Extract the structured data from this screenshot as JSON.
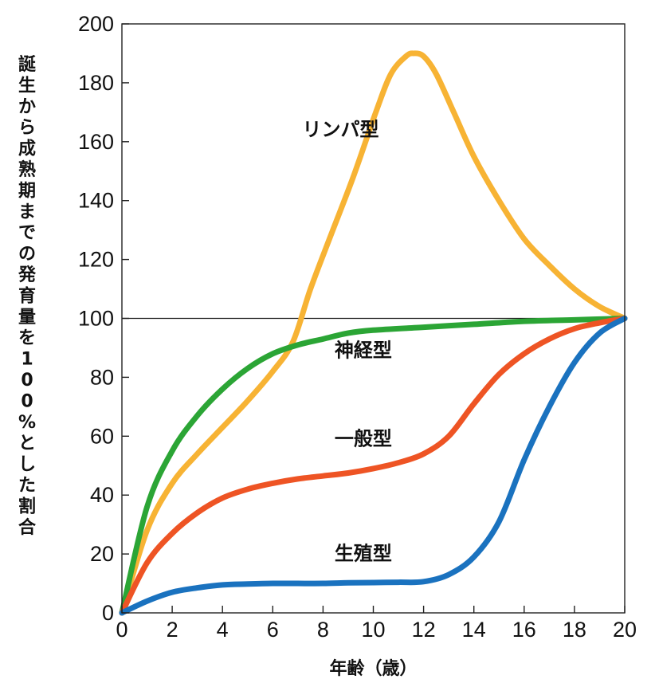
{
  "chart_data": {
    "type": "line",
    "title": "",
    "xlabel": "年齢（歳）",
    "ylabel": "誕生から成熟期までの発育量を100%とした割合",
    "xlim": [
      0,
      20
    ],
    "ylim": [
      0,
      200
    ],
    "x_ticks": [
      0,
      2,
      4,
      6,
      8,
      10,
      12,
      14,
      16,
      18,
      20
    ],
    "y_ticks": [
      0,
      20,
      40,
      60,
      80,
      100,
      120,
      140,
      160,
      180,
      200
    ],
    "reference_line_y": 100,
    "series": [
      {
        "name": "リンパ型",
        "color": "#F7B334",
        "x": [
          0,
          1,
          2,
          3,
          4,
          5,
          6,
          6.8,
          7.5,
          8.3,
          9.2,
          10.1,
          10.7,
          11.3,
          11.6,
          12,
          12.5,
          13.2,
          14,
          15,
          16,
          17,
          18,
          19,
          20
        ],
        "y": [
          0,
          28,
          44,
          54,
          63,
          72,
          82,
          92,
          110,
          128,
          148,
          170,
          183,
          189,
          190,
          189,
          183,
          170,
          155,
          140,
          127,
          118,
          110,
          104,
          100
        ]
      },
      {
        "name": "神経型",
        "color": "#2BA535",
        "x": [
          0,
          1,
          2,
          3,
          4,
          5,
          6,
          7,
          8,
          9,
          10,
          12,
          14,
          16,
          18,
          20
        ],
        "y": [
          0,
          36,
          55,
          67,
          76,
          83,
          88,
          91,
          93,
          95,
          96,
          97,
          98,
          99,
          99.5,
          100
        ]
      },
      {
        "name": "一般型",
        "color": "#EE5424",
        "x": [
          0,
          1,
          2,
          3,
          4,
          5,
          6,
          7,
          8,
          9,
          10,
          11,
          12,
          13,
          14,
          15,
          16,
          17,
          18,
          19,
          20
        ],
        "y": [
          0,
          17,
          27,
          34,
          39,
          42,
          44,
          45.5,
          46.5,
          47.5,
          49,
          51,
          54,
          60,
          71,
          81,
          88,
          93,
          96.5,
          98.5,
          100
        ]
      },
      {
        "name": "生殖型",
        "color": "#1A72BF",
        "x": [
          0,
          1,
          2,
          3,
          4,
          5,
          6,
          7,
          8,
          9,
          10,
          11,
          12,
          13,
          14,
          15,
          16,
          17,
          18,
          19,
          20
        ],
        "y": [
          0,
          4,
          7,
          8.5,
          9.5,
          9.8,
          10,
          10,
          10,
          10.2,
          10.3,
          10.4,
          10.6,
          13,
          19,
          31,
          52,
          70,
          85,
          95,
          100
        ]
      }
    ],
    "annotations": [
      {
        "text": "リンパ型",
        "series": "リンパ型",
        "at": [
          8.7,
          162
        ]
      },
      {
        "text": "神経型",
        "series": "神経型",
        "at": [
          9.6,
          87
        ]
      },
      {
        "text": "一般型",
        "series": "一般型",
        "at": [
          9.6,
          57
        ]
      },
      {
        "text": "生殖型",
        "series": "生殖型",
        "at": [
          9.6,
          18
        ]
      }
    ]
  }
}
